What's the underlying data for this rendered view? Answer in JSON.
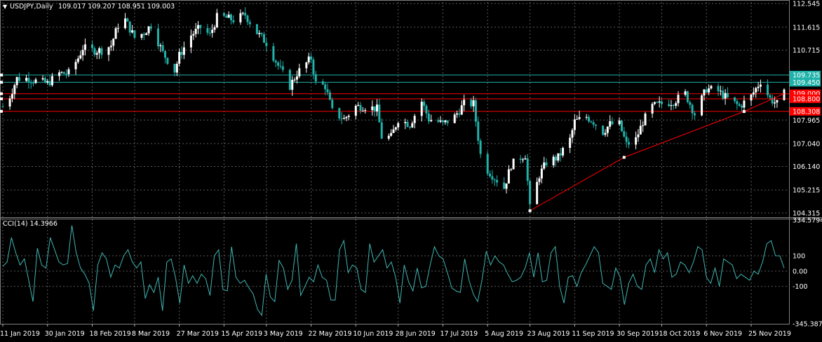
{
  "header": {
    "symbol_label": "USDJPY,Daily",
    "ohlc_label": "109.017 109.207 108.951 109.003",
    "arrow_glyph": "▼"
  },
  "colors": {
    "background": "#000000",
    "grid": "#5a5a5a",
    "bull": "#ffffff",
    "bear": "#20b2aa",
    "cci_line": "#3fb6b2",
    "resistance": "#20b2aa",
    "support": "#ff0000",
    "trendline": "#ff0000"
  },
  "chart_data": [
    {
      "type": "candlestick",
      "title": "USDJPY,Daily 109.017 109.207 108.951 109.003",
      "ylim": [
        104.2,
        112.6
      ],
      "y_ticks": [
        "112.545",
        "111.615",
        "110.715",
        "109.735",
        "109.450",
        "109.000",
        "108.800",
        "108.308",
        "107.965",
        "107.040",
        "106.140",
        "105.215",
        "104.315"
      ],
      "x_ticks": [
        "11 Jan 2019",
        "30 Jan 2019",
        "18 Feb 2019",
        "8 Mar 2019",
        "27 Mar 2019",
        "15 Apr 2019",
        "3 May 2019",
        "22 May 2019",
        "10 Jun 2019",
        "28 Jun 2019",
        "17 Jul 2019",
        "5 Aug 2019",
        "23 Aug 2019",
        "11 Sep 2019",
        "30 Sep 2019",
        "18 Oct 2019",
        "6 Nov 2019",
        "25 Nov 2019"
      ],
      "close_path": [
        [
          "11 Jan 2019",
          108.5
        ],
        [
          "14 Jan 2019",
          108.9
        ],
        [
          "17 Jan 2019",
          109.6
        ],
        [
          "22 Jan 2019",
          109.6
        ],
        [
          "25 Jan 2019",
          109.5
        ],
        [
          "30 Jan 2019",
          109.4
        ],
        [
          "4 Feb 2019",
          109.8
        ],
        [
          "8 Feb 2019",
          109.8
        ],
        [
          "12 Feb 2019",
          110.4
        ],
        [
          "14 Feb 2019",
          110.8
        ],
        [
          "18 Feb 2019",
          110.7
        ],
        [
          "22 Feb 2019",
          110.7
        ],
        [
          "26 Feb 2019",
          110.9
        ],
        [
          "1 Mar 2019",
          111.7
        ],
        [
          "4 Mar 2019",
          111.9
        ],
        [
          "8 Mar 2019",
          111.2
        ],
        [
          "12 Mar 2019",
          111.4
        ],
        [
          "15 Mar 2019",
          111.7
        ],
        [
          "20 Mar 2019",
          110.6
        ],
        [
          "25 Mar 2019",
          109.9
        ],
        [
          "27 Mar 2019",
          110.5
        ],
        [
          "1 Apr 2019",
          111.3
        ],
        [
          "5 Apr 2019",
          111.6
        ],
        [
          "9 Apr 2019",
          111.3
        ],
        [
          "12 Apr 2019",
          112.0
        ],
        [
          "15 Apr 2019",
          112.0
        ],
        [
          "19 Apr 2019",
          111.9
        ],
        [
          "24 Apr 2019",
          112.1
        ],
        [
          "29 Apr 2019",
          111.4
        ],
        [
          "3 May 2019",
          111.0
        ],
        [
          "8 May 2019",
          110.1
        ],
        [
          "13 May 2019",
          109.3
        ],
        [
          "16 May 2019",
          109.8
        ],
        [
          "22 May 2019",
          110.4
        ],
        [
          "24 May 2019",
          109.4
        ],
        [
          "28 May 2019",
          109.3
        ],
        [
          "31 May 2019",
          108.3
        ],
        [
          "5 Jun 2019",
          108.0
        ],
        [
          "10 Jun 2019",
          108.5
        ],
        [
          "14 Jun 2019",
          108.5
        ],
        [
          "19 Jun 2019",
          108.4
        ],
        [
          "21 Jun 2019",
          107.3
        ],
        [
          "25 Jun 2019",
          107.3
        ],
        [
          "28 Jun 2019",
          108.0
        ],
        [
          "3 Jul 2019",
          107.8
        ],
        [
          "8 Jul 2019",
          108.7
        ],
        [
          "11 Jul 2019",
          108.0
        ],
        [
          "15 Jul 2019",
          107.9
        ],
        [
          "17 Jul 2019",
          107.8
        ],
        [
          "22 Jul 2019",
          108.1
        ],
        [
          "26 Jul 2019",
          108.6
        ],
        [
          "30 Jul 2019",
          108.6
        ],
        [
          "2 Aug 2019",
          106.6
        ],
        [
          "5 Aug 2019",
          106.0
        ],
        [
          "8 Aug 2019",
          105.7
        ],
        [
          "12 Aug 2019",
          105.3
        ],
        [
          "15 Aug 2019",
          106.2
        ],
        [
          "19 Aug 2019",
          106.5
        ],
        [
          "21 Aug 2019",
          106.6
        ],
        [
          "23 Aug 2019",
          104.5
        ],
        [
          "27 Aug 2019",
          105.8
        ],
        [
          "30 Aug 2019",
          106.3
        ],
        [
          "4 Sep 2019",
          106.5
        ],
        [
          "9 Sep 2019",
          107.2
        ],
        [
          "11 Sep 2019",
          107.9
        ],
        [
          "16 Sep 2019",
          108.1
        ],
        [
          "19 Sep 2019",
          107.9
        ],
        [
          "23 Sep 2019",
          107.5
        ],
        [
          "26 Sep 2019",
          107.8
        ],
        [
          "30 Sep 2019",
          107.8
        ],
        [
          "3 Oct 2019",
          107.0
        ],
        [
          "7 Oct 2019",
          107.2
        ],
        [
          "10 Oct 2019",
          107.9
        ],
        [
          "14 Oct 2019",
          108.5
        ],
        [
          "18 Oct 2019",
          108.6
        ],
        [
          "23 Oct 2019",
          108.7
        ],
        [
          "28 Oct 2019",
          109.0
        ],
        [
          "1 Nov 2019",
          108.2
        ],
        [
          "6 Nov 2019",
          109.2
        ],
        [
          "11 Nov 2019",
          109.1
        ],
        [
          "15 Nov 2019",
          108.8
        ],
        [
          "20 Nov 2019",
          108.5
        ],
        [
          "25 Nov 2019",
          108.9
        ],
        [
          "29 Nov 2019",
          109.5
        ],
        [
          "3 Dec 2019",
          108.8
        ],
        [
          "6 Dec 2019",
          108.6
        ],
        [
          "9 Dec 2019",
          109.0
        ]
      ],
      "levels": [
        {
          "value": 109.735,
          "label": "109.735",
          "color": "#20b2aa"
        },
        {
          "value": 109.45,
          "label": "109.450",
          "color": "#20b2aa"
        },
        {
          "value": 109.0,
          "label": "109.000",
          "color": "#ff0000"
        },
        {
          "value": 108.8,
          "label": "108.800",
          "color": "#ff0000"
        },
        {
          "value": 108.308,
          "label": "108.308",
          "color": "#ff0000"
        }
      ],
      "trendline": [
        [
          "23 Aug 2019",
          104.4
        ],
        [
          "2 Oct 2019",
          106.5
        ],
        [
          "22 Nov 2019",
          108.3
        ],
        [
          "9 Dec 2019",
          109.0
        ]
      ]
    },
    {
      "type": "line",
      "title": "CCI(14) 14.3966",
      "ylim": [
        -345.3873,
        334.5794
      ],
      "y_ticks": [
        "334.5794",
        "100",
        "0.00",
        "-100",
        "-345.3873"
      ],
      "reference_lines": [
        100,
        0,
        -100
      ],
      "values": [
        30,
        60,
        220,
        120,
        40,
        80,
        -60,
        -200,
        150,
        40,
        20,
        220,
        140,
        60,
        40,
        50,
        300,
        120,
        20,
        -20,
        -80,
        -260,
        40,
        120,
        80,
        -40,
        40,
        20,
        100,
        140,
        60,
        20,
        60,
        -180,
        -90,
        -140,
        -40,
        -260,
        60,
        80,
        -40,
        -210,
        40,
        -80,
        -30,
        -80,
        -20,
        -50,
        -160,
        100,
        140,
        -120,
        -130,
        160,
        -40,
        -80,
        -60,
        -110,
        -150,
        -250,
        -290,
        -20,
        -170,
        -200,
        70,
        20,
        -120,
        -60,
        180,
        -160,
        -100,
        -40,
        -70,
        40,
        -40,
        -60,
        -190,
        -190,
        140,
        200,
        -10,
        40,
        20,
        -120,
        -140,
        180,
        60,
        100,
        140,
        20,
        60,
        -40,
        -210,
        40,
        -70,
        -130,
        20,
        -110,
        -100,
        40,
        160,
        100,
        80,
        -10,
        -110,
        -130,
        -140,
        80,
        -60,
        -150,
        -200,
        -60,
        130,
        40,
        100,
        60,
        40,
        -20,
        -70,
        -60,
        -40,
        20,
        120,
        -40,
        120,
        -70,
        -60,
        120,
        160,
        -100,
        -210,
        -40,
        -30,
        -100,
        -10,
        40,
        100,
        160,
        120,
        -80,
        -100,
        -120,
        20,
        -40,
        -220,
        -80,
        -20,
        -100,
        -120,
        40,
        80,
        -10,
        140,
        80,
        120,
        -40,
        -20,
        60,
        40,
        -10,
        60,
        160,
        140,
        -40,
        -80,
        20,
        -100,
        80,
        60,
        40,
        -50,
        -20,
        -40,
        -60,
        0,
        -20,
        60,
        180,
        200,
        100,
        100,
        20
      ]
    }
  ]
}
